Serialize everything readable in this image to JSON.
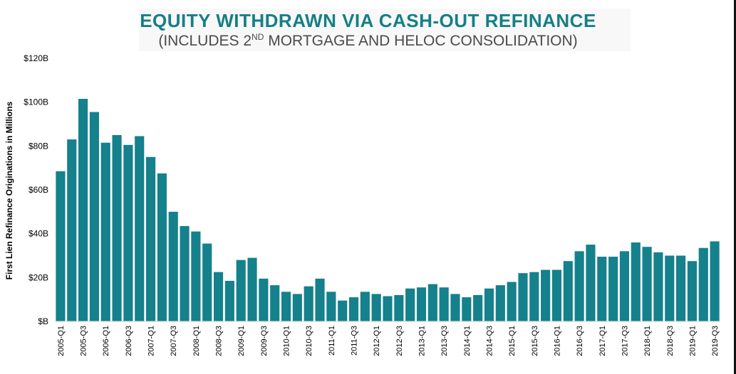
{
  "title": "EQUITY WITHDRAWN VIA CASH-OUT REFINANCE",
  "subtitle": {
    "pre": "(INCLUDES 2",
    "sup": "ND",
    "post": " MORTGAGE AND HELOC CONSOLIDATION)"
  },
  "colors": {
    "bar": "#14818c",
    "title": "#157f86"
  },
  "chart_data": {
    "type": "bar",
    "title": "EQUITY WITHDRAWN VIA CASH-OUT REFINANCE",
    "subtitle": "(INCLUDES 2ND MORTGAGE AND HELOC CONSOLIDATION)",
    "xlabel": "",
    "ylabel": "First Lien Refinance Originations in Millions",
    "ylim": [
      0,
      120
    ],
    "y_ticks": [
      0,
      20,
      40,
      60,
      80,
      100,
      120
    ],
    "y_tick_labels": [
      "$B",
      "$20B",
      "$40B",
      "$60B",
      "$80B",
      "$100B",
      "$120B"
    ],
    "grid": false,
    "categories": [
      "2005-Q1",
      "2005-Q2",
      "2005-Q3",
      "2005-Q4",
      "2006-Q1",
      "2006-Q2",
      "2006-Q3",
      "2006-Q4",
      "2007-Q1",
      "2007-Q2",
      "2007-Q3",
      "2007-Q4",
      "2008-Q1",
      "2008-Q2",
      "2008-Q3",
      "2008-Q4",
      "2009-Q1",
      "2009-Q2",
      "2009-Q3",
      "2009-Q4",
      "2010-Q1",
      "2010-Q2",
      "2010-Q3",
      "2010-Q4",
      "2011-Q1",
      "2011-Q2",
      "2011-Q3",
      "2011-Q4",
      "2012-Q1",
      "2012-Q2",
      "2012-Q3",
      "2012-Q4",
      "2013-Q1",
      "2013-Q2",
      "2013-Q3",
      "2013-Q4",
      "2014-Q1",
      "2014-Q2",
      "2014-Q3",
      "2014-Q4",
      "2015-Q1",
      "2015-Q2",
      "2015-Q3",
      "2015-Q4",
      "2016-Q1",
      "2016-Q2",
      "2016-Q3",
      "2016-Q4",
      "2017-Q1",
      "2017-Q2",
      "2017-Q3",
      "2017-Q4",
      "2018-Q1",
      "2018-Q2",
      "2018-Q3",
      "2018-Q4",
      "2019-Q1",
      "2019-Q2",
      "2019-Q3"
    ],
    "x_tick_labels": [
      "2005-Q1",
      "2005-Q3",
      "2006-Q1",
      "2006-Q3",
      "2007-Q1",
      "2007-Q3",
      "2008-Q1",
      "2008-Q3",
      "2009-Q1",
      "2009-Q3",
      "2010-Q1",
      "2010-Q3",
      "2011-Q1",
      "2011-Q3",
      "2012-Q1",
      "2012-Q3",
      "2013-Q1",
      "2013-Q3",
      "2014-Q1",
      "2014-Q3",
      "2015-Q1",
      "2015-Q3",
      "2016-Q1",
      "2016-Q3",
      "2017-Q1",
      "2017-Q3",
      "2018-Q1",
      "2018-Q3",
      "2019-Q1",
      "2019-Q3"
    ],
    "values": [
      68.5,
      83,
      101.5,
      95.5,
      81.5,
      85,
      80.5,
      84.5,
      75,
      67.5,
      50,
      43.5,
      41,
      35.5,
      22.5,
      18.5,
      28,
      29,
      19.5,
      16.5,
      13.5,
      12.5,
      16,
      19.5,
      13.5,
      9.5,
      11,
      13.5,
      12.5,
      11.5,
      12,
      15,
      15.5,
      17,
      15.5,
      12.5,
      11,
      12,
      15,
      16.5,
      18,
      22,
      22.5,
      23.5,
      23.5,
      27.5,
      32,
      35,
      29.5,
      29.5,
      32,
      36,
      34,
      31.5,
      30,
      30,
      27.5,
      33.5,
      36.5
    ]
  }
}
